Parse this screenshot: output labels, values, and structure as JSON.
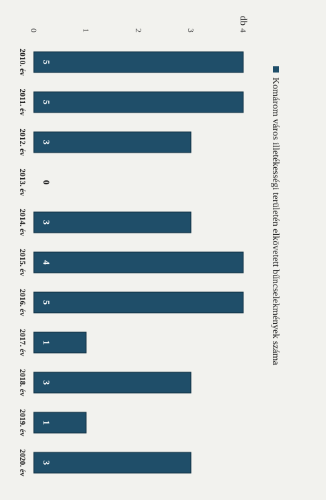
{
  "chart_data": {
    "type": "bar",
    "orientation": "horizontal",
    "title": "",
    "categories": [
      "2010. év",
      "2011. év",
      "2012. év",
      "2013. év",
      "2014. év",
      "2015. év",
      "2016. év",
      "2017. év",
      "2018. év",
      "2019. év",
      "2020. év"
    ],
    "series": [
      {
        "name": "Komárom város illetékességi területén elkövetett bűncselekmények száma",
        "values": [
          5,
          5,
          3,
          0,
          3,
          4,
          5,
          1,
          3,
          1,
          3
        ],
        "color": "#1f4e69"
      }
    ],
    "value_labels": [
      "5",
      "5",
      "3",
      "0",
      "3",
      "4",
      "5",
      "1",
      "3",
      "1",
      "3"
    ],
    "axis_ticks": [
      "0",
      "1",
      "2",
      "3",
      "4"
    ],
    "unit_label": "db",
    "vlim": [
      0,
      4
    ],
    "grid": false,
    "legend_position": "top",
    "rotated_view": "page rotated 90° clockwise"
  }
}
